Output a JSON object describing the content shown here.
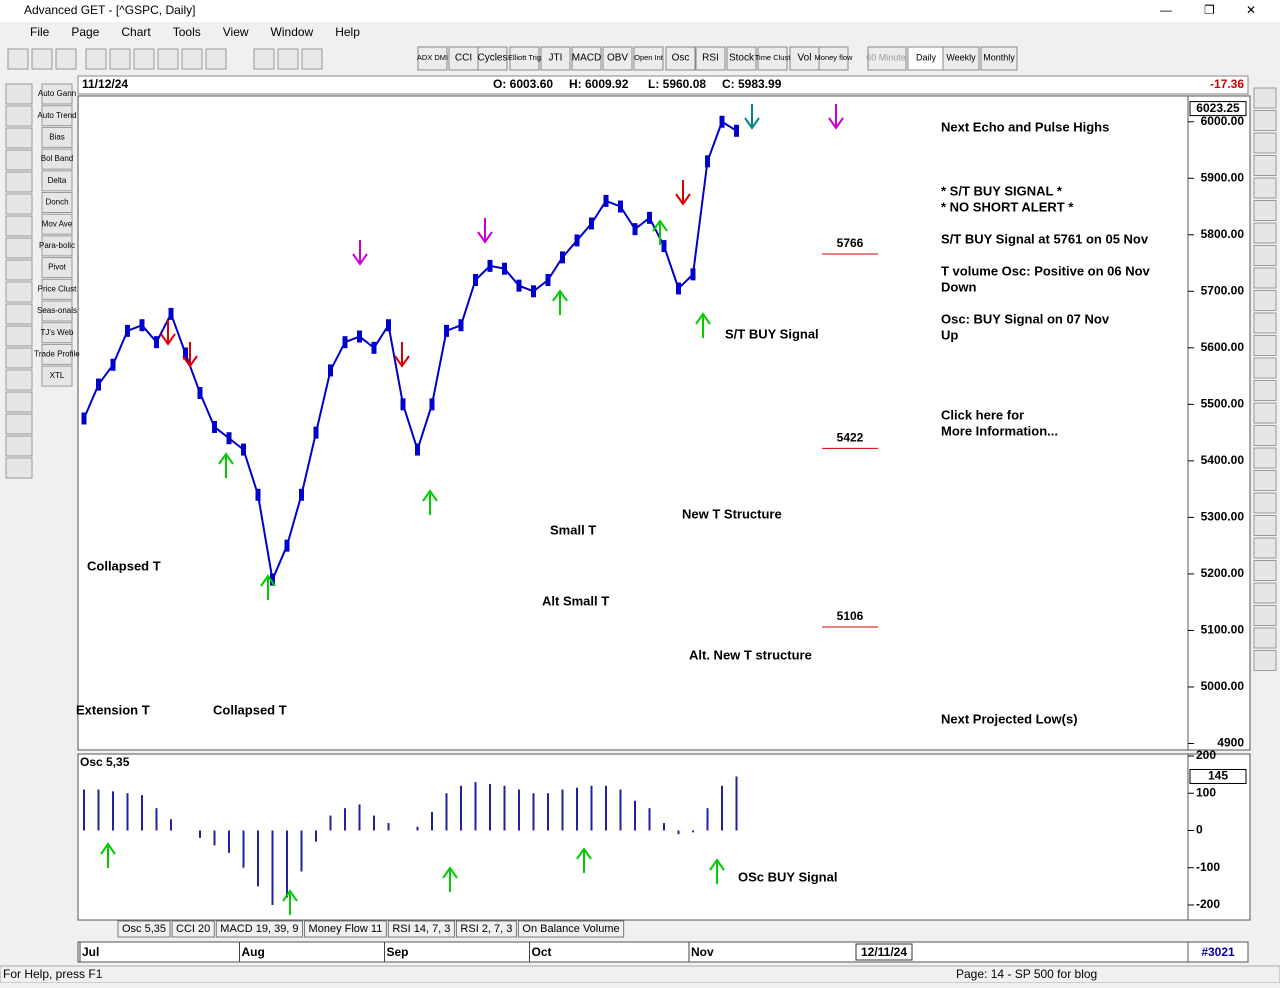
{
  "window": {
    "title": "Advanced GET - [^GSPC, Daily]"
  },
  "menu": [
    "File",
    "Page",
    "Chart",
    "Tools",
    "View",
    "Window",
    "Help"
  ],
  "toolbar": [
    "ADX DMI",
    "CCI",
    "Cycles",
    "Elliott Trig",
    "JTI",
    "MACD",
    "OBV",
    "Open Int",
    "Osc",
    "RSI",
    "Stock",
    "Time Clust",
    "Vol",
    "Money flow"
  ],
  "timeframes": [
    "60 Minute",
    "Daily",
    "Weekly",
    "Monthly"
  ],
  "side_buttons": [
    "Auto Gann",
    "Auto Trend",
    "Bias",
    "Bol Band",
    "Delta",
    "Donch",
    "Mov Ave",
    "Para-bolic",
    "Pivot",
    "Price Clust",
    "Seas-onals",
    "TJ's Web",
    "Trade Profile",
    "XTL"
  ],
  "info": {
    "date": "11/12/24",
    "open": "O: 6003.60",
    "high": "H: 6009.92",
    "low": "L: 5960.08",
    "close": "C: 5983.99",
    "change": "-17.36"
  },
  "chart_data": [
    {
      "type": "line",
      "color": "#0000cc",
      "categories": [
        "Jul",
        null,
        null,
        null,
        null,
        null,
        null,
        null,
        null,
        null,
        null,
        "Aug",
        null,
        null,
        null,
        null,
        null,
        null,
        null,
        null,
        null,
        "Sep",
        null,
        null,
        null,
        null,
        null,
        null,
        null,
        null,
        null,
        "Oct",
        null,
        null,
        null,
        null,
        null,
        null,
        null,
        null,
        null,
        null,
        "Nov",
        null,
        null,
        null
      ],
      "values": [
        5475,
        5535,
        5570,
        5630,
        5640,
        5610,
        5660,
        5590,
        5520,
        5460,
        5440,
        5420,
        5340,
        5190,
        5250,
        5340,
        5450,
        5560,
        5610,
        5620,
        5600,
        5640,
        5500,
        5420,
        5500,
        5630,
        5640,
        5720,
        5745,
        5740,
        5710,
        5700,
        5720,
        5760,
        5790,
        5820,
        5860,
        5850,
        5810,
        5830,
        5780,
        5705,
        5730,
        5930,
        6000,
        5984
      ],
      "ylim": [
        4892,
        6042
      ],
      "yticks": [
        {
          "value": 6000,
          "label": "6000.00"
        },
        {
          "value": 5900,
          "label": "5900.00"
        },
        {
          "value": 5800,
          "label": "5800.00"
        },
        {
          "value": 5700,
          "label": "5700.00"
        },
        {
          "value": 5600,
          "label": "5600.00"
        },
        {
          "value": 5500,
          "label": "5500.00"
        },
        {
          "value": 5400,
          "label": "5400.00"
        },
        {
          "value": 5300,
          "label": "5300.00"
        },
        {
          "value": 5200,
          "label": "5200.00"
        },
        {
          "value": 5100,
          "label": "5100.00"
        },
        {
          "value": 5000,
          "label": "5000.00"
        },
        4900
      ],
      "current_price": 6023.25,
      "levels": [
        5766,
        5422,
        5106
      ],
      "annotations": [
        "S/T BUY Signal",
        "Collapsed T",
        "Collapsed T",
        "Extension T",
        "Small T",
        "Alt Small T",
        "New T Structure",
        "Alt. New T structure"
      ],
      "notes": [
        "Next Echo and Pulse Highs",
        "* S/T BUY SIGNAL *",
        "* NO SHORT ALERT *",
        "S/T BUY Signal at 5761 on 05 Nov",
        "T volume Osc: Positive on 06 Nov",
        "Down",
        "Osc: BUY Signal on 07 Nov",
        "Up",
        "Click here for",
        "More Information...",
        "Next Projected Low(s)"
      ]
    },
    {
      "type": "bar",
      "title": "Osc 5,35",
      "color": "#2020a0",
      "values": [
        110,
        110,
        105,
        100,
        95,
        60,
        30,
        0,
        -20,
        -40,
        -60,
        -100,
        -150,
        -200,
        -180,
        -110,
        -30,
        40,
        60,
        70,
        40,
        20,
        0,
        10,
        50,
        100,
        120,
        130,
        125,
        120,
        110,
        100,
        100,
        110,
        115,
        120,
        120,
        110,
        80,
        60,
        20,
        -10,
        -5,
        60,
        120,
        145
      ],
      "ylim": [
        -235,
        200
      ],
      "yticks": [
        200,
        100,
        0,
        -100,
        -200
      ],
      "current": 145,
      "annotation": "OSc BUY Signal"
    }
  ],
  "tabs": [
    "Osc 5,35",
    "CCI 20",
    "MACD 19, 39, 9",
    "Money Flow 11",
    "RSI 14, 7, 3",
    "RSI 2, 7, 3",
    "On Balance Volume"
  ],
  "time_box": "12/11/24",
  "bar_count": "#3021",
  "status": {
    "help": "For Help, press F1",
    "page": "Page: 14 - SP 500 for blog"
  }
}
